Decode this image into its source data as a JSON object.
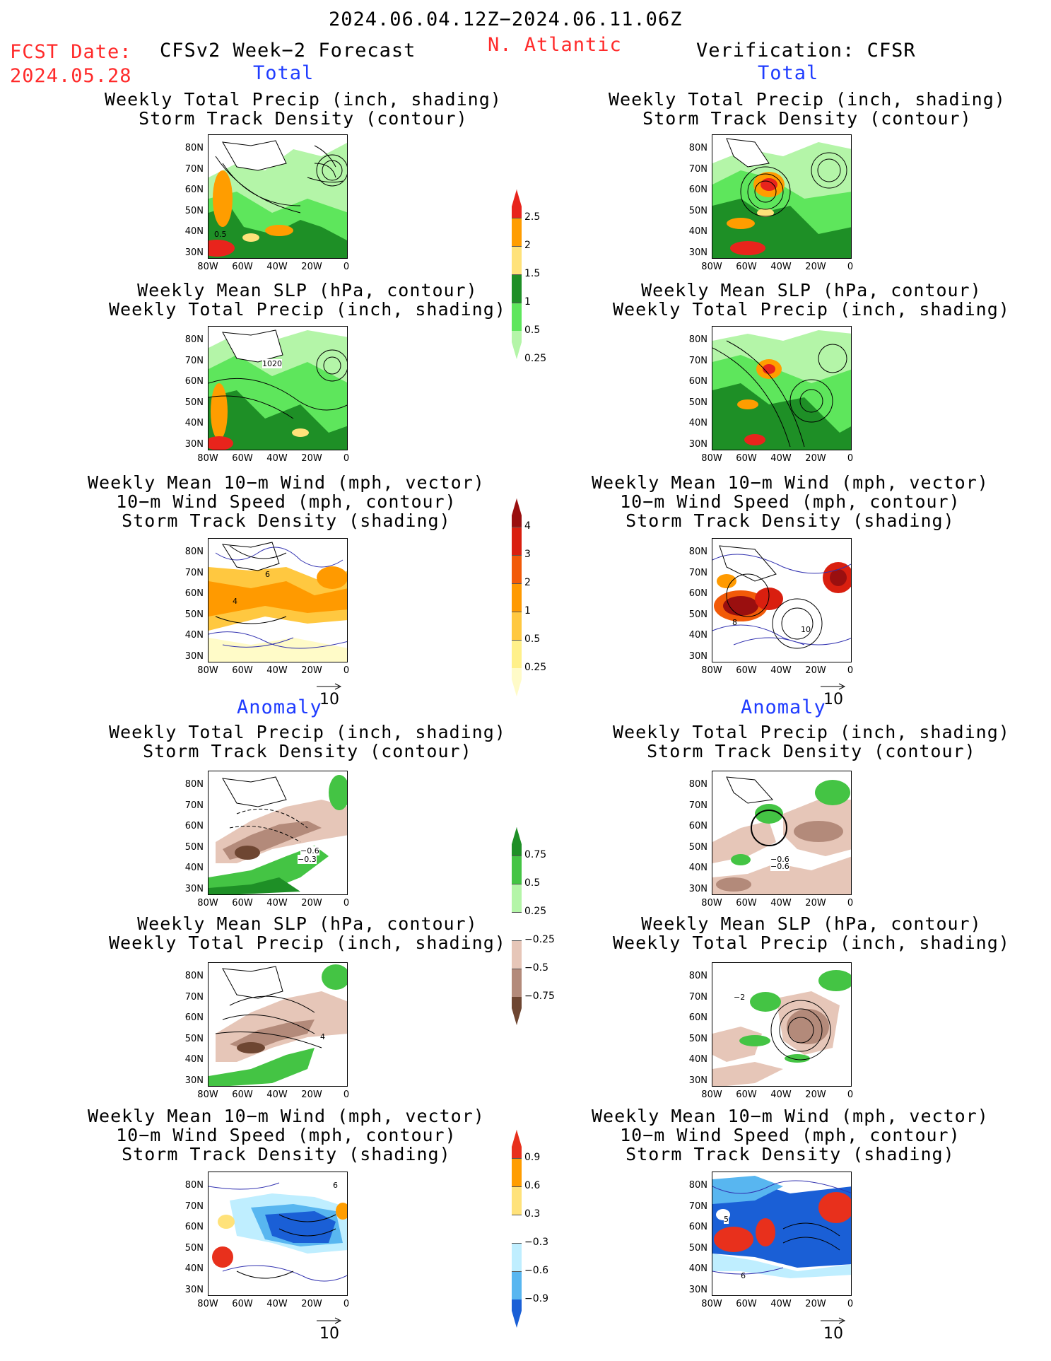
{
  "header": {
    "date_range": "2024.06.04.12Z−2024.06.11.06Z",
    "fcst_label": "FCST Date:",
    "fcst_date": "2024.05.28",
    "forecast_title": "CFSv2 Week−2 Forecast",
    "region": "N. Atlantic",
    "verification": "Verification: CFSR"
  },
  "sections": {
    "total": "Total",
    "anomaly": "Anomaly"
  },
  "titles": {
    "precip_track": [
      "Weekly Total Precip (inch, shading)",
      "Storm Track Density (contour)"
    ],
    "slp_precip": [
      "Weekly Mean SLP (hPa, contour)",
      "Weekly Total Precip (inch, shading)"
    ],
    "wind_track": [
      "Weekly Mean 10−m Wind (mph, vector)",
      "10−m Wind Speed (mph, contour)",
      "Storm Track Density (shading)"
    ]
  },
  "axes": {
    "lat_ticks": [
      "80N",
      "70N",
      "60N",
      "50N",
      "40N",
      "30N"
    ],
    "lon_ticks": [
      "80W",
      "60W",
      "40W",
      "20W",
      "0"
    ]
  },
  "map_labels": {
    "left_precip_total": "0.5",
    "left_slp_total": "1020",
    "left_wind_total_a": "4",
    "left_wind_total_b": "6",
    "right_wind_total_a": "10",
    "right_wind_total_b": "8",
    "left_precip_anom_a": "−0.6",
    "left_precip_anom_b": "−0.3",
    "right_precip_anom_a": "−0.6",
    "right_precip_anom_b": "−0.6",
    "left_slp_anom": "4",
    "right_slp_anom": "−2",
    "left_wind_anom": "6",
    "right_wind_anom_a": "5",
    "right_wind_anom_b": "6"
  },
  "vector_ref": "10",
  "colorbars": {
    "precip_total": {
      "labels": [
        "2.5",
        "2",
        "1.5",
        "1",
        "0.5",
        "0.25"
      ],
      "colors": [
        "#e8241c",
        "#ff9d00",
        "#ffe27a",
        "#1e8f26",
        "#5ee65c",
        "#b4f5a8"
      ]
    },
    "track_total": {
      "labels": [
        "4",
        "3",
        "2",
        "1",
        "0.5",
        "0.25"
      ],
      "colors": [
        "#9a0f0f",
        "#d91f0f",
        "#f25a08",
        "#ff9a00",
        "#ffc840",
        "#fff08a",
        "#fffbc8"
      ]
    },
    "precip_anom": {
      "labels": [
        "0.75",
        "0.5",
        "0.25",
        "−0.25",
        "−0.5",
        "−0.75"
      ],
      "colors": [
        "#1e8f26",
        "#44c444",
        "#b4f5a8",
        "#ffffff",
        "#e6c6b8",
        "#b38a7a",
        "#6e4632"
      ]
    },
    "track_anom": {
      "labels": [
        "0.9",
        "0.6",
        "0.3",
        "−0.3",
        "−0.6",
        "−0.9"
      ],
      "colors": [
        "#e8301c",
        "#ff9d00",
        "#ffe27a",
        "#ffffff",
        "#bfeeff",
        "#58b6f0",
        "#1a5fd6"
      ]
    }
  }
}
